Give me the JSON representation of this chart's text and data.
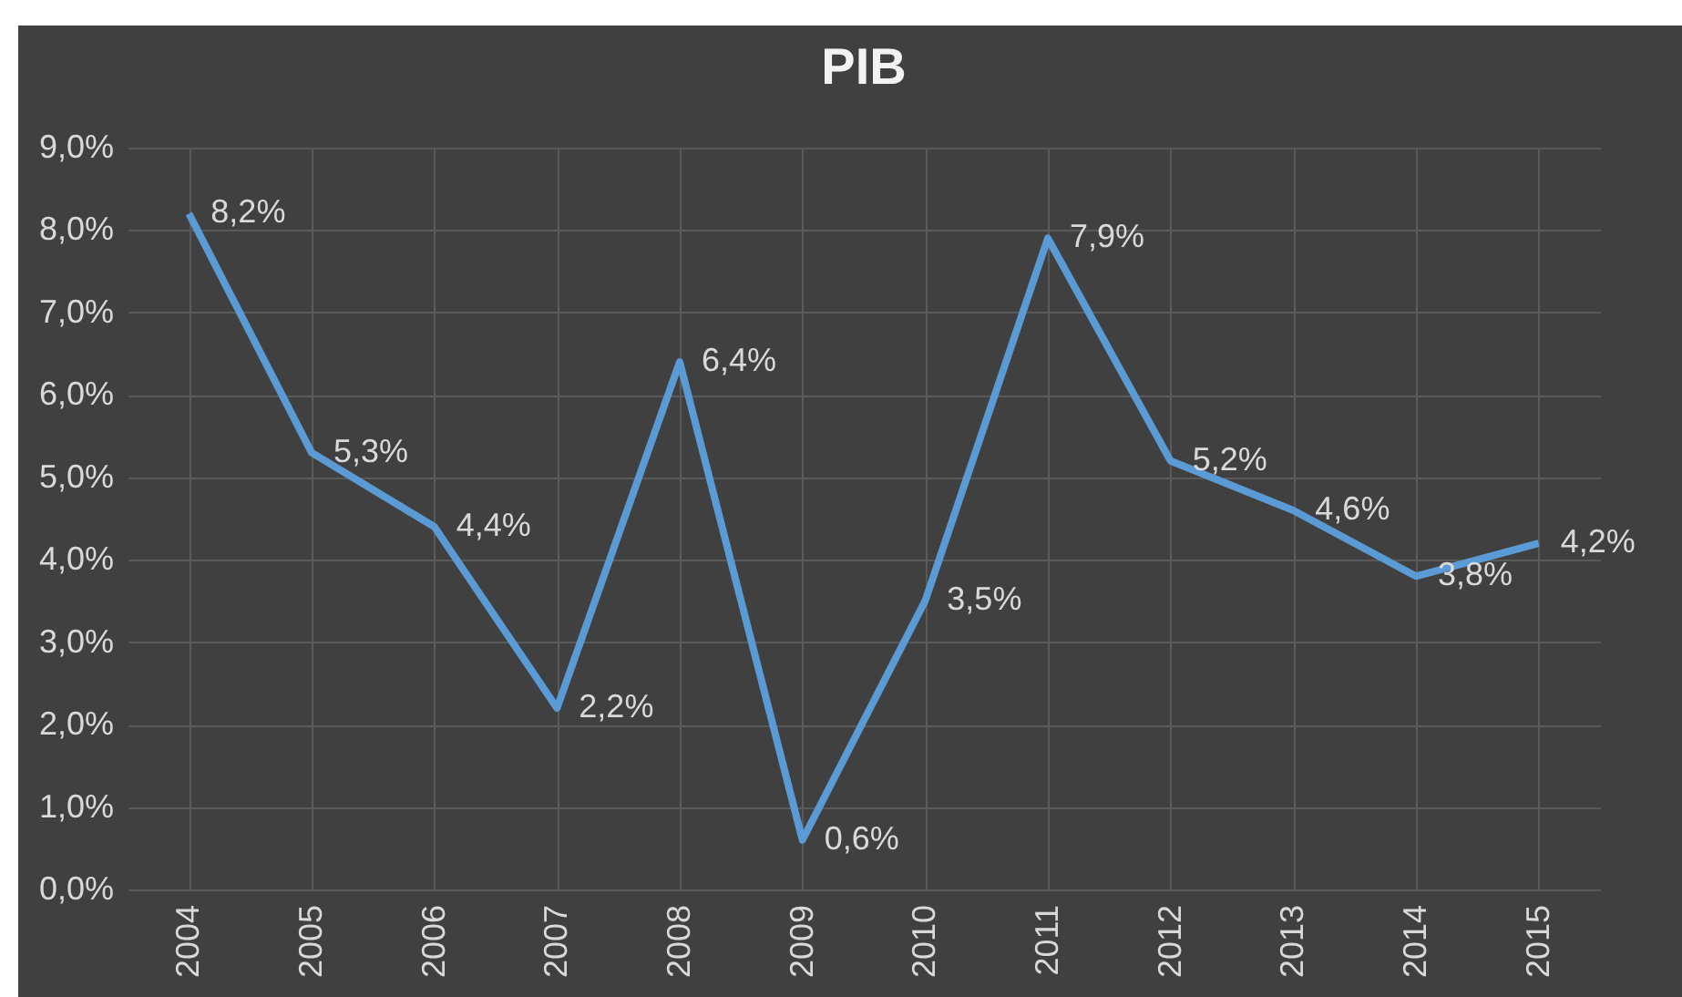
{
  "chart_data": {
    "type": "line",
    "title": "PIB",
    "categories": [
      "2004",
      "2005",
      "2006",
      "2007",
      "2008",
      "2009",
      "2010",
      "2011",
      "2012",
      "2013",
      "2014",
      "2015"
    ],
    "series": [
      {
        "color": "#5b9bd5",
        "values": [
          8.2,
          5.3,
          4.4,
          2.2,
          6.4,
          0.6,
          3.5,
          7.9,
          5.2,
          4.6,
          3.8,
          4.2
        ],
        "value_labels": [
          "8,2%",
          "5,3%",
          "4,4%",
          "2,2%",
          "6,4%",
          "0,6%",
          "3,5%",
          "7,9%",
          "5,2%",
          "4,6%",
          "3,8%",
          "4,2%"
        ]
      }
    ],
    "ylim": [
      0,
      9
    ],
    "yticks": [
      {
        "value": 0,
        "label": "0,0%"
      },
      {
        "value": 1,
        "label": "1,0%"
      },
      {
        "value": 2,
        "label": "2,0%"
      },
      {
        "value": 3,
        "label": "3,0%"
      },
      {
        "value": 4,
        "label": "4,0%"
      },
      {
        "value": 5,
        "label": "5,0%"
      },
      {
        "value": 6,
        "label": "6,0%"
      },
      {
        "value": 7,
        "label": "7,0%"
      },
      {
        "value": 8,
        "label": "8,0%"
      },
      {
        "value": 9,
        "label": "9,0%"
      }
    ],
    "grid": true,
    "marker": "none",
    "line_style": "solid"
  }
}
